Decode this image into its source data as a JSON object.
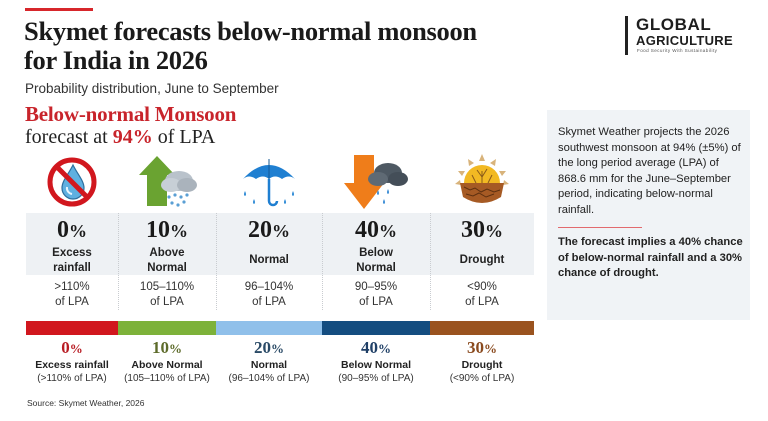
{
  "header": {
    "title": "Skymet forecasts below-normal monsoon for India in 2026",
    "subtitle": "Probability distribution, June to September",
    "highlight_title": "Below-normal Monsoon",
    "highlight_prefix": "forecast at ",
    "highlight_value": "94%",
    "highlight_suffix": " of LPA"
  },
  "logo": {
    "line1": "GLOBAL",
    "line2": "AGRICULTURE",
    "tagline": "Food Security With Sustainability"
  },
  "colors": {
    "accent": "#d7262b",
    "excess": "#d1171e",
    "above_normal": "#7db23a",
    "normal": "#90c0ea",
    "below_normal": "#144d80",
    "drought": "#9a531f"
  },
  "chart_data": {
    "type": "bar",
    "title": "Skymet forecasts below-normal monsoon for India in 2026",
    "subtitle": "Probability distribution, June to September",
    "categories": [
      "Excess rainfall",
      "Above Normal",
      "Normal",
      "Below Normal",
      "Drought"
    ],
    "values": [
      0,
      10,
      20,
      40,
      30
    ],
    "unit": "%",
    "ranges": [
      ">110% of LPA",
      "105–110% of LPA",
      "96–104% of LPA",
      "90–95% of LPA",
      "<90% of LPA"
    ],
    "forecast_lpa_percent": 94,
    "source": "Source: Skymet Weather, 2026"
  },
  "categories": [
    {
      "key": "excess",
      "icon": "no-rain-icon",
      "value": "0",
      "sign": "%",
      "label_lines": [
        "Excess",
        "rainfall"
      ],
      "range_lines": [
        ">110%",
        "of LPA"
      ],
      "legend_name": "Excess rainfall",
      "legend_range": "(>110% of LPA)",
      "color": "#d1171e",
      "text_color": "#b81c24"
    },
    {
      "key": "above",
      "icon": "up-arrow-rain-cloud-icon",
      "value": "10",
      "sign": "%",
      "label_lines": [
        "Above",
        "Normal"
      ],
      "range_lines": [
        "105–110%",
        "of LPA"
      ],
      "legend_name": "Above Normal",
      "legend_range": "(105–110% of LPA)",
      "color": "#7db23a",
      "text_color": "#5d6b2a"
    },
    {
      "key": "normal",
      "icon": "umbrella-rain-icon",
      "value": "20",
      "sign": "%",
      "label_lines": [
        "Normal"
      ],
      "range_lines": [
        "96–104%",
        "of LPA"
      ],
      "legend_name": "Normal",
      "legend_range": "(96–104% of LPA)",
      "color": "#90c0ea",
      "text_color": "#2a4a66"
    },
    {
      "key": "below",
      "icon": "down-arrow-storm-cloud-icon",
      "value": "40",
      "sign": "%",
      "label_lines": [
        "Below",
        "Normal"
      ],
      "range_lines": [
        "90–95%",
        "of LPA"
      ],
      "legend_name": "Below Normal",
      "legend_range": "(90–95% of LPA)",
      "color": "#144d80",
      "text_color": "#1f3f66"
    },
    {
      "key": "drought",
      "icon": "sun-cracked-earth-icon",
      "value": "30",
      "sign": "%",
      "label_lines": [
        "Drought"
      ],
      "range_lines": [
        "<90%",
        "of LPA"
      ],
      "legend_name": "Drought",
      "legend_range": "(<90% of LPA)",
      "color": "#9a531f",
      "text_color": "#8a4a1e"
    }
  ],
  "info_box": {
    "paragraph": "Skymet Weather projects the 2026 southwest monsoon at 94% (±5%) of the long period average (LPA) of 868.6 mm for the June–September period, indicating below-normal rainfall.",
    "highlight": "The forecast implies a 40% chance of below-normal rainfall and a 30% chance of drought."
  },
  "source": "Source: Skymet Weather, 2026"
}
